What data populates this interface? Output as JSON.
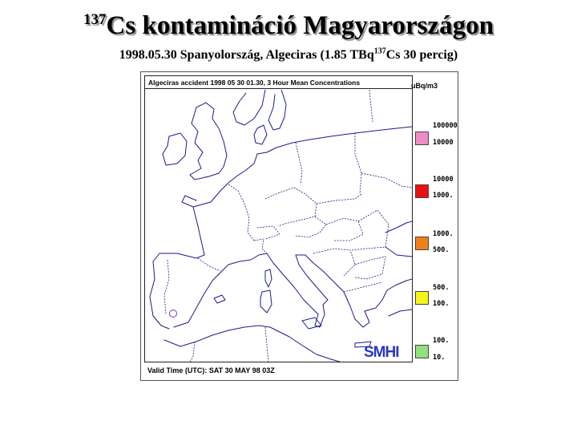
{
  "header": {
    "title_sup": "137",
    "title_main": "Cs kontamináció Magyarországon",
    "subtitle_a": "1998.05.30 Spanyolország, Algeciras (1.85 TBq",
    "subtitle_sup": "137",
    "subtitle_b": "Cs 30 percig)"
  },
  "map": {
    "header": "Algeciras accident 1998 05 30 01.30, 3 Hour Mean Concentrations",
    "valid_time": "Valid Time (UTC):  SAT 30 MAY 98 03Z",
    "logo": "SMHI",
    "source_marker": "algeciras-release-point",
    "line_color": "#1a1a8c"
  },
  "legend": {
    "unit": "uBq/m3",
    "items": [
      {
        "upper": "100000",
        "lower": "10000",
        "color": "#f08bc4"
      },
      {
        "upper": "10000",
        "lower": "1000.",
        "color": "#ec1010"
      },
      {
        "upper": "1000.",
        "lower": "500.",
        "color": "#f2801a"
      },
      {
        "upper": "500.",
        "lower": "100.",
        "color": "#f5f51a"
      },
      {
        "upper": "100.",
        "lower": "10.",
        "color": "#93e07c"
      }
    ]
  }
}
